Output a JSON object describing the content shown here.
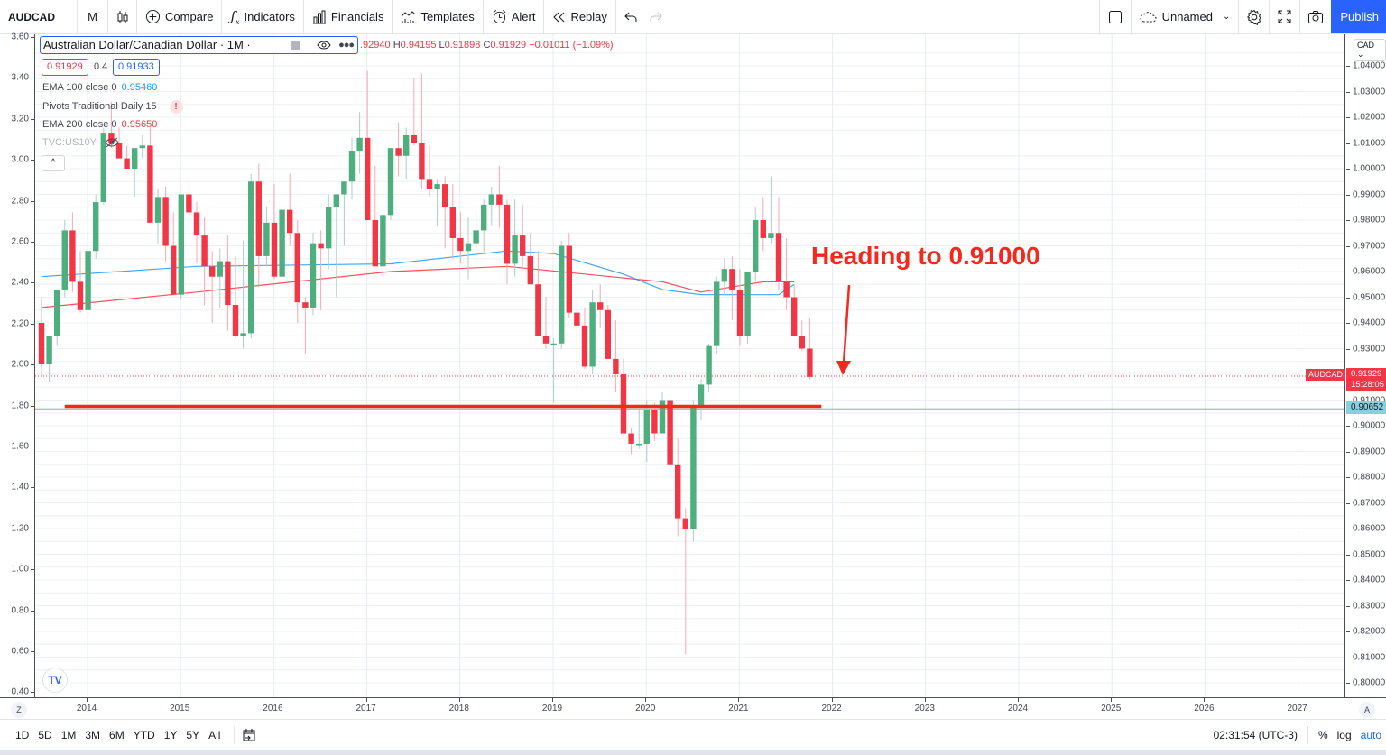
{
  "toolbar": {
    "symbol": "AUDCAD",
    "interval": "M",
    "chart_type_icon": "candles-icon",
    "compare": "Compare",
    "indicators": "Indicators",
    "financials": "Financials",
    "templates": "Templates",
    "alert": "Alert",
    "replay": "Replay",
    "layout_name": "Unnamed",
    "publish": "Publish"
  },
  "legend": {
    "title": "Australian Dollar/Canadian Dollar · 1M ·",
    "ohlc_open": ".92940",
    "ohlc_high_label": "H",
    "ohlc_high": "0.94195",
    "ohlc_low_label": "L",
    "ohlc_low": "0.91898",
    "ohlc_close_label": "C",
    "ohlc_close": "0.91929",
    "ohlc_change": "−0.01011 (−1.09%)",
    "bid": "0.91929",
    "spread": "0.4",
    "ask": "0.91933",
    "indicators": [
      {
        "name": "EMA 100 close 0",
        "value": "0.95460",
        "color": "#2196f3"
      },
      {
        "name": "Pivots Traditional Daily 15",
        "value": "!",
        "color": "#f23645"
      },
      {
        "name": "EMA 200 close 0",
        "value": "0.95650",
        "color": "#f23645"
      },
      {
        "name": "TVC:US10Y",
        "value": "",
        "color": "#b2b5be"
      }
    ],
    "collapse": "^"
  },
  "annotation": {
    "text": "Heading to 0.91000",
    "color": "#f6271b"
  },
  "price_axis": {
    "currency": "CAD ⌄",
    "ticks": [
      "1.04000",
      "1.03000",
      "1.02000",
      "1.01000",
      "1.00000",
      "0.99000",
      "0.98000",
      "0.97000",
      "0.96000",
      "0.95000",
      "0.94000",
      "0.93000",
      "0.91000",
      "0.90000",
      "0.89000",
      "0.88000",
      "0.87000",
      "0.86000",
      "0.85000",
      "0.84000",
      "0.83000",
      "0.82000",
      "0.81000",
      "0.80000"
    ],
    "last_price": "0.91929",
    "countdown": "15:28:05",
    "symbol_tag": "AUDCAD",
    "horizontal_line": "0.90652",
    "auto_button": "A"
  },
  "left_axis": {
    "ticks": [
      "3.60",
      "3.40",
      "3.20",
      "3.00",
      "2.80",
      "2.60",
      "2.40",
      "2.20",
      "2.00",
      "1.80",
      "1.60",
      "1.40",
      "1.20",
      "1.00",
      "0.80",
      "0.60",
      "0.40"
    ]
  },
  "time_axis": {
    "years": [
      "2014",
      "2015",
      "2016",
      "2017",
      "2018",
      "2019",
      "2020",
      "2021",
      "2022",
      "2023",
      "2024",
      "2025",
      "2026",
      "2027"
    ],
    "zoom_button": "Z"
  },
  "bottom_bar": {
    "ranges": [
      "1D",
      "5D",
      "1M",
      "3M",
      "6M",
      "YTD",
      "1Y",
      "5Y",
      "All"
    ],
    "clock": "02:31:54 (UTC-3)",
    "percent": "%",
    "log": "log",
    "auto": "auto"
  },
  "logo": "TV",
  "colors": {
    "up": "#26a69a",
    "up_body": "#4caf7d",
    "down": "#f23645",
    "ema100": "#2196f3",
    "ema200": "#f23645",
    "support_line": "#f6271b",
    "cyan_line": "#89d0dc",
    "accent": "#2962ff"
  },
  "chart_data": {
    "type": "candlestick",
    "title": "Australian Dollar/Canadian Dollar · 1M",
    "start": "2013-07",
    "ylabel": "CAD",
    "ylim": [
      0.795,
      1.046
    ],
    "candles": [
      [
        0.94,
        0.95,
        0.919,
        0.924
      ],
      [
        0.924,
        0.935,
        0.917,
        0.935
      ],
      [
        0.935,
        0.948,
        0.931,
        0.953
      ],
      [
        0.953,
        0.98,
        0.95,
        0.976
      ],
      [
        0.976,
        0.983,
        0.952,
        0.956
      ],
      [
        0.956,
        0.968,
        0.944,
        0.945
      ],
      [
        0.945,
        0.969,
        0.943,
        0.968
      ],
      [
        0.968,
        0.99,
        0.965,
        0.987
      ],
      [
        0.987,
        1.016,
        0.986,
        1.014
      ],
      [
        1.014,
        1.026,
        1.008,
        1.01
      ],
      [
        1.01,
        1.016,
        1.005,
        1.004
      ],
      [
        1.004,
        1.009,
        1.0,
        1.0
      ],
      [
        1.0,
        1.008,
        0.989,
        1.008
      ],
      [
        1.008,
        1.013,
        1.004,
        1.009
      ],
      [
        1.009,
        1.016,
        0.98,
        0.979
      ],
      [
        0.979,
        0.992,
        0.971,
        0.989
      ],
      [
        0.989,
        0.993,
        0.964,
        0.97
      ],
      [
        0.97,
        0.983,
        0.952,
        0.951
      ],
      [
        0.951,
        0.988,
        0.949,
        0.99
      ],
      [
        0.99,
        0.995,
        0.974,
        0.983
      ],
      [
        0.983,
        0.987,
        0.963,
        0.974
      ],
      [
        0.974,
        0.981,
        0.947,
        0.962
      ],
      [
        0.962,
        0.968,
        0.94,
        0.958
      ],
      [
        0.958,
        0.969,
        0.946,
        0.964
      ],
      [
        0.964,
        0.974,
        0.937,
        0.947
      ],
      [
        0.947,
        0.966,
        0.934,
        0.935
      ],
      [
        0.935,
        0.972,
        0.93,
        0.936
      ],
      [
        0.936,
        0.998,
        0.934,
        0.995
      ],
      [
        0.995,
        1.002,
        0.954,
        0.966
      ],
      [
        0.966,
        0.985,
        0.962,
        0.979
      ],
      [
        0.979,
        0.994,
        0.957,
        0.958
      ],
      [
        0.958,
        0.984,
        0.957,
        0.984
      ],
      [
        0.984,
        0.998,
        0.97,
        0.975
      ],
      [
        0.975,
        0.98,
        0.94,
        0.948
      ],
      [
        0.948,
        0.95,
        0.928,
        0.946
      ],
      [
        0.946,
        0.975,
        0.943,
        0.971
      ],
      [
        0.971,
        0.976,
        0.945,
        0.969
      ],
      [
        0.969,
        0.99,
        0.961,
        0.985
      ],
      [
        0.985,
        0.988,
        0.95,
        0.99
      ],
      [
        0.99,
        0.994,
        0.97,
        0.995
      ],
      [
        0.995,
        1.012,
        0.988,
        1.007
      ],
      [
        1.007,
        1.022,
        0.998,
        1.012
      ],
      [
        1.012,
        1.038,
        0.995,
        0.98
      ],
      [
        0.98,
        1.001,
        0.965,
        0.962
      ],
      [
        0.962,
        0.982,
        0.958,
        0.982
      ],
      [
        0.982,
        1.008,
        0.98,
        1.008
      ],
      [
        1.008,
        1.018,
        0.997,
        1.005
      ],
      [
        1.005,
        1.016,
        0.996,
        1.013
      ],
      [
        1.013,
        1.035,
        1.009,
        1.01
      ],
      [
        1.01,
        1.037,
        0.992,
        0.996
      ],
      [
        0.996,
        1.009,
        0.989,
        0.992
      ],
      [
        0.992,
        0.996,
        0.978,
        0.994
      ],
      [
        0.994,
        0.997,
        0.969,
        0.985
      ],
      [
        0.985,
        0.994,
        0.965,
        0.973
      ],
      [
        0.973,
        0.983,
        0.963,
        0.968
      ],
      [
        0.968,
        0.981,
        0.957,
        0.971
      ],
      [
        0.971,
        0.984,
        0.961,
        0.976
      ],
      [
        0.976,
        0.988,
        0.967,
        0.986
      ],
      [
        0.986,
        0.993,
        0.978,
        0.99
      ],
      [
        0.99,
        1.001,
        0.977,
        0.986
      ],
      [
        0.986,
        0.988,
        0.955,
        0.963
      ],
      [
        0.963,
        0.988,
        0.958,
        0.974
      ],
      [
        0.974,
        0.986,
        0.961,
        0.966
      ],
      [
        0.966,
        0.975,
        0.96,
        0.955
      ],
      [
        0.955,
        0.968,
        0.946,
        0.935
      ],
      [
        0.935,
        0.95,
        0.93,
        0.932
      ],
      [
        0.932,
        0.934,
        0.909,
        0.932
      ],
      [
        0.932,
        0.972,
        0.93,
        0.97
      ],
      [
        0.97,
        0.975,
        0.942,
        0.944
      ],
      [
        0.944,
        0.95,
        0.915,
        0.939
      ],
      [
        0.939,
        0.946,
        0.922,
        0.923
      ],
      [
        0.923,
        0.953,
        0.92,
        0.948
      ],
      [
        0.948,
        0.955,
        0.938,
        0.945
      ],
      [
        0.945,
        0.947,
        0.928,
        0.926
      ],
      [
        0.926,
        0.941,
        0.913,
        0.92
      ],
      [
        0.92,
        0.926,
        0.905,
        0.897
      ],
      [
        0.897,
        0.899,
        0.889,
        0.893
      ],
      [
        0.893,
        0.906,
        0.891,
        0.893
      ],
      [
        0.893,
        0.91,
        0.886,
        0.906
      ],
      [
        0.906,
        0.909,
        0.894,
        0.897
      ],
      [
        0.897,
        0.913,
        0.897,
        0.91
      ],
      [
        0.91,
        0.911,
        0.88,
        0.885
      ],
      [
        0.885,
        0.895,
        0.857,
        0.864
      ],
      [
        0.864,
        0.868,
        0.811,
        0.86
      ],
      [
        0.86,
        0.91,
        0.855,
        0.907
      ],
      [
        0.907,
        0.918,
        0.902,
        0.916
      ],
      [
        0.916,
        0.932,
        0.913,
        0.931
      ],
      [
        0.931,
        0.958,
        0.928,
        0.956
      ],
      [
        0.956,
        0.965,
        0.951,
        0.961
      ],
      [
        0.961,
        0.966,
        0.941,
        0.953
      ],
      [
        0.953,
        0.961,
        0.931,
        0.935
      ],
      [
        0.935,
        0.96,
        0.932,
        0.96
      ],
      [
        0.96,
        0.985,
        0.956,
        0.98
      ],
      [
        0.98,
        0.989,
        0.968,
        0.973
      ],
      [
        0.973,
        0.997,
        0.971,
        0.975
      ],
      [
        0.975,
        0.989,
        0.953,
        0.956
      ],
      [
        0.956,
        0.973,
        0.945,
        0.95
      ],
      [
        0.95,
        0.955,
        0.935,
        0.935
      ],
      [
        0.935,
        0.941,
        0.929,
        0.93
      ],
      [
        0.93,
        0.942,
        0.918,
        0.919
      ]
    ],
    "ema100_path": [
      [
        0,
        0.958
      ],
      [
        20,
        0.962
      ],
      [
        45,
        0.963
      ],
      [
        60,
        0.968
      ],
      [
        66,
        0.967
      ],
      [
        75,
        0.959
      ],
      [
        80,
        0.953
      ],
      [
        85,
        0.951
      ],
      [
        95,
        0.951
      ],
      [
        97,
        0.955
      ]
    ],
    "ema200_path": [
      [
        0,
        0.946
      ],
      [
        20,
        0.952
      ],
      [
        45,
        0.96
      ],
      [
        60,
        0.962
      ],
      [
        80,
        0.956
      ],
      [
        85,
        0.952
      ],
      [
        93,
        0.956
      ],
      [
        97,
        0.956
      ]
    ],
    "support_line": 0.91,
    "horizontal_cyan": 0.90652,
    "last_price_line": 0.91929
  }
}
